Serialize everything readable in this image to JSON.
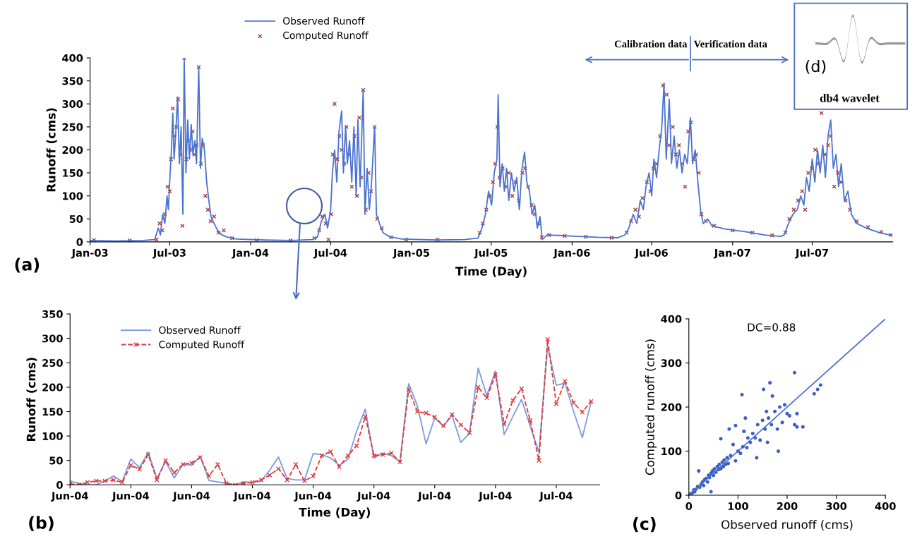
{
  "chart_data": [
    {
      "type": "line",
      "xlabel": "Time (Day)",
      "ylabel": "Runoff (cms)",
      "xlim": [
        "2003-01-01",
        "2007-12-31"
      ],
      "ylim": [
        0,
        400
      ],
      "yticks": [
        0,
        50,
        100,
        150,
        200,
        250,
        300,
        350,
        400
      ],
      "xticks": [
        {
          "value": "2003-01-01",
          "label": "Jan-03"
        },
        {
          "value": "2003-07-01",
          "label": "Jul-03"
        },
        {
          "value": "2004-01-01",
          "label": "Jan-04"
        },
        {
          "value": "2004-07-01",
          "label": "Jul-04"
        },
        {
          "value": "2005-01-01",
          "label": "Jan-05"
        },
        {
          "value": "2005-07-01",
          "label": "Jul-05"
        },
        {
          "value": "2006-01-01",
          "label": "Jan-06"
        },
        {
          "value": "2006-07-01",
          "label": "Jul-06"
        },
        {
          "value": "2007-01-01",
          "label": "Jan-07"
        },
        {
          "value": "2007-07-01",
          "label": "Jul-07"
        }
      ],
      "legend": "top",
      "annotations": [
        "(a)",
        "Calibration data",
        "Verification data"
      ],
      "series": [
        {
          "name": "Observed Runoff",
          "type": "line",
          "color": "#4a72d0",
          "x": [
            "2003-01-01",
            "2003-03-01",
            "2003-05-01",
            "2003-05-28",
            "2003-06-05",
            "2003-06-10",
            "2003-06-15",
            "2003-06-20",
            "2003-06-25",
            "2003-06-28",
            "2003-07-02",
            "2003-07-05",
            "2003-07-08",
            "2003-07-11",
            "2003-07-15",
            "2003-07-19",
            "2003-07-23",
            "2003-07-27",
            "2003-07-31",
            "2003-08-03",
            "2003-08-07",
            "2003-08-11",
            "2003-08-15",
            "2003-08-19",
            "2003-08-23",
            "2003-08-27",
            "2003-08-31",
            "2003-09-05",
            "2003-09-09",
            "2003-09-13",
            "2003-09-18",
            "2003-09-23",
            "2003-09-28",
            "2003-10-03",
            "2003-10-10",
            "2003-10-18",
            "2003-10-28",
            "2003-11-10",
            "2003-12-01",
            "2004-02-01",
            "2004-04-01",
            "2004-05-20",
            "2004-06-01",
            "2004-06-10",
            "2004-06-18",
            "2004-06-24",
            "2004-07-01",
            "2004-07-05",
            "2004-07-10",
            "2004-07-15",
            "2004-07-20",
            "2004-07-26",
            "2004-07-30",
            "2004-08-04",
            "2004-08-08",
            "2004-08-13",
            "2004-08-18",
            "2004-08-23",
            "2004-08-28",
            "2004-09-01",
            "2004-09-06",
            "2004-09-13",
            "2004-09-17",
            "2004-09-22",
            "2004-09-27",
            "2004-10-02",
            "2004-10-09",
            "2004-10-13",
            "2004-10-20",
            "2004-10-28",
            "2004-11-10",
            "2004-12-10",
            "2005-03-01",
            "2005-05-01",
            "2005-06-01",
            "2005-06-10",
            "2005-06-18",
            "2005-06-25",
            "2005-07-02",
            "2005-07-08",
            "2005-07-14",
            "2005-07-17",
            "2005-07-21",
            "2005-07-26",
            "2005-07-31",
            "2005-08-05",
            "2005-08-10",
            "2005-08-16",
            "2005-08-22",
            "2005-08-28",
            "2005-09-03",
            "2005-09-09",
            "2005-09-15",
            "2005-09-20",
            "2005-09-26",
            "2005-10-02",
            "2005-10-08",
            "2005-10-14",
            "2005-10-20",
            "2005-10-25",
            "2005-11-05",
            "2005-12-01",
            "2006-01-15",
            "2006-03-01",
            "2006-04-15",
            "2006-05-01",
            "2006-05-10",
            "2006-05-20",
            "2006-05-28",
            "2006-06-05",
            "2006-06-12",
            "2006-06-18",
            "2006-06-25",
            "2006-07-01",
            "2006-07-06",
            "2006-07-12",
            "2006-07-18",
            "2006-07-24",
            "2006-07-29",
            "2006-08-03",
            "2006-08-10",
            "2006-08-15",
            "2006-08-21",
            "2006-08-27",
            "2006-09-02",
            "2006-09-08",
            "2006-09-14",
            "2006-09-20",
            "2006-09-27",
            "2006-10-02",
            "2006-10-08",
            "2006-10-14",
            "2006-10-20",
            "2006-10-26",
            "2006-11-05",
            "2006-11-15",
            "2006-12-15",
            "2007-02-01",
            "2007-03-15",
            "2007-04-20",
            "2007-04-28",
            "2007-05-08",
            "2007-05-18",
            "2007-05-28",
            "2007-06-05",
            "2007-06-12",
            "2007-06-18",
            "2007-06-24",
            "2007-07-01",
            "2007-07-07",
            "2007-07-13",
            "2007-07-19",
            "2007-07-25",
            "2007-07-31",
            "2007-08-06",
            "2007-08-12",
            "2007-08-18",
            "2007-08-24",
            "2007-08-30",
            "2007-09-05",
            "2007-09-12",
            "2007-09-20",
            "2007-09-28",
            "2007-10-10",
            "2007-11-01",
            "2007-12-01",
            "2007-12-25"
          ],
          "values": [
            3,
            2,
            3,
            5,
            30,
            15,
            60,
            40,
            100,
            70,
            150,
            200,
            280,
            180,
            240,
            315,
            170,
            250,
            60,
            400,
            150,
            265,
            180,
            255,
            190,
            220,
            170,
            380,
            160,
            225,
            200,
            130,
            90,
            55,
            40,
            25,
            15,
            10,
            6,
            4,
            3,
            5,
            10,
            45,
            60,
            30,
            70,
            150,
            200,
            130,
            240,
            285,
            150,
            250,
            170,
            220,
            130,
            250,
            100,
            265,
            120,
            330,
            60,
            160,
            70,
            130,
            250,
            60,
            40,
            20,
            12,
            6,
            4,
            5,
            8,
            30,
            60,
            110,
            80,
            150,
            180,
            320,
            120,
            170,
            110,
            160,
            90,
            150,
            110,
            140,
            70,
            160,
            195,
            130,
            110,
            60,
            80,
            30,
            55,
            5,
            15,
            14,
            12,
            10,
            9,
            15,
            30,
            60,
            40,
            90,
            70,
            120,
            150,
            100,
            180,
            140,
            200,
            250,
            345,
            180,
            310,
            170,
            230,
            160,
            200,
            150,
            190,
            170,
            270,
            170,
            200,
            130,
            70,
            40,
            50,
            35,
            28,
            22,
            15,
            12,
            15,
            40,
            60,
            70,
            100,
            80,
            140,
            110,
            180,
            130,
            200,
            150,
            210,
            140,
            230,
            265,
            160,
            190,
            120,
            170,
            90,
            110,
            60,
            40,
            30,
            20,
            15
          ]
        },
        {
          "name": "Computed Runoff",
          "type": "scatter",
          "marker": "cross",
          "color": "#a33a3a",
          "x": [
            "2003-01-10",
            "2003-04-01",
            "2003-06-01",
            "2003-06-08",
            "2003-06-14",
            "2003-06-20",
            "2003-06-26",
            "2003-07-01",
            "2003-07-04",
            "2003-07-08",
            "2003-07-12",
            "2003-07-16",
            "2003-07-20",
            "2003-07-25",
            "2003-07-30",
            "2003-08-03",
            "2003-08-08",
            "2003-08-12",
            "2003-08-17",
            "2003-08-22",
            "2003-08-26",
            "2003-08-31",
            "2003-09-05",
            "2003-09-10",
            "2003-09-15",
            "2003-09-20",
            "2003-09-26",
            "2003-10-02",
            "2003-10-10",
            "2003-10-20",
            "2003-11-01",
            "2003-11-20",
            "2004-01-15",
            "2004-04-01",
            "2004-05-25",
            "2004-06-05",
            "2004-06-12",
            "2004-06-20",
            "2004-06-26",
            "2004-07-02",
            "2004-07-06",
            "2004-07-10",
            "2004-07-16",
            "2004-07-21",
            "2004-07-26",
            "2004-08-01",
            "2004-08-06",
            "2004-08-12",
            "2004-08-18",
            "2004-08-24",
            "2004-08-30",
            "2004-09-04",
            "2004-09-09",
            "2004-09-13",
            "2004-09-19",
            "2004-09-25",
            "2004-10-01",
            "2004-10-09",
            "2004-10-15",
            "2004-10-25",
            "2004-11-15",
            "2004-12-20",
            "2005-03-01",
            "2005-06-05",
            "2005-06-12",
            "2005-06-20",
            "2005-06-28",
            "2005-07-05",
            "2005-07-10",
            "2005-07-15",
            "2005-07-20",
            "2005-07-27",
            "2005-08-03",
            "2005-08-10",
            "2005-08-18",
            "2005-08-25",
            "2005-09-02",
            "2005-09-10",
            "2005-09-16",
            "2005-09-23",
            "2005-10-01",
            "2005-10-08",
            "2005-10-16",
            "2005-10-24",
            "2005-11-10",
            "2005-12-15",
            "2006-02-01",
            "2006-04-01",
            "2006-05-05",
            "2006-05-15",
            "2006-05-25",
            "2006-06-02",
            "2006-06-10",
            "2006-06-20",
            "2006-06-28",
            "2006-07-05",
            "2006-07-12",
            "2006-07-20",
            "2006-07-27",
            "2006-08-04",
            "2006-08-10",
            "2006-08-18",
            "2006-08-25",
            "2006-09-01",
            "2006-09-08",
            "2006-09-15",
            "2006-09-22",
            "2006-09-28",
            "2006-10-04",
            "2006-10-10",
            "2006-10-16",
            "2006-10-22",
            "2006-11-01",
            "2006-11-20",
            "2007-01-01",
            "2007-02-15",
            "2007-04-01",
            "2007-05-01",
            "2007-05-10",
            "2007-05-20",
            "2007-05-30",
            "2007-06-08",
            "2007-06-15",
            "2007-06-22",
            "2007-06-30",
            "2007-07-08",
            "2007-07-15",
            "2007-07-22",
            "2007-07-30",
            "2007-08-06",
            "2007-08-12",
            "2007-08-20",
            "2007-08-28",
            "2007-09-05",
            "2007-09-15",
            "2007-09-25",
            "2007-10-10",
            "2007-11-05",
            "2007-12-05",
            "2007-12-27"
          ],
          "values": [
            4,
            3,
            5,
            40,
            25,
            60,
            120,
            110,
            180,
            290,
            230,
            250,
            310,
            190,
            35,
            400,
            180,
            220,
            200,
            240,
            190,
            210,
            380,
            170,
            210,
            100,
            70,
            45,
            55,
            20,
            25,
            8,
            4,
            3,
            8,
            25,
            55,
            40,
            5,
            60,
            190,
            300,
            180,
            230,
            200,
            170,
            250,
            190,
            120,
            230,
            100,
            270,
            140,
            330,
            70,
            150,
            110,
            250,
            50,
            30,
            10,
            5,
            5,
            20,
            40,
            70,
            100,
            130,
            170,
            250,
            140,
            160,
            120,
            150,
            100,
            130,
            90,
            150,
            160,
            120,
            80,
            60,
            40,
            10,
            15,
            13,
            11,
            9,
            20,
            45,
            70,
            55,
            95,
            130,
            110,
            160,
            170,
            230,
            340,
            320,
            210,
            250,
            190,
            210,
            170,
            120,
            240,
            260,
            180,
            190,
            150,
            60,
            45,
            35,
            25,
            20,
            14,
            20,
            50,
            70,
            90,
            110,
            70,
            150,
            160,
            200,
            170,
            280,
            190,
            210,
            230,
            120,
            150,
            130,
            90,
            70,
            45,
            32,
            22,
            15
          ]
        }
      ]
    },
    {
      "type": "line",
      "xlabel": "Time (Day)",
      "ylabel": "Runoff (cms)",
      "ylim": [
        0,
        350
      ],
      "yticks": [
        0,
        50,
        100,
        150,
        200,
        250,
        300,
        350
      ],
      "legend": "top left",
      "annotations": [
        "(b)"
      ],
      "categories": [
        "Jun-04",
        null,
        null,
        null,
        null,
        null,
        null,
        "Jun-04",
        null,
        null,
        null,
        null,
        null,
        null,
        "Jun-04",
        null,
        null,
        null,
        null,
        null,
        null,
        "Jun-04",
        null,
        null,
        null,
        null,
        null,
        null,
        "Jun-04",
        null,
        null,
        null,
        null,
        null,
        null,
        "Jul-04",
        null,
        null,
        null,
        null,
        null,
        null,
        "Jul-04",
        null,
        null,
        null,
        null,
        null,
        null,
        "Jul-04",
        null,
        null,
        null,
        null,
        null,
        null,
        "Jul-04",
        null,
        null,
        null,
        null
      ],
      "series": [
        {
          "name": "Observed Runoff",
          "color": "#7a9be0",
          "line_style": "solid",
          "values": [
            8,
            3,
            0,
            0,
            8,
            18,
            7,
            53,
            35,
            67,
            13,
            48,
            14,
            42,
            40,
            58,
            9,
            6,
            3,
            0,
            6,
            5,
            8,
            30,
            57,
            13,
            10,
            10,
            64,
            62,
            55,
            40,
            52,
            110,
            155,
            55,
            65,
            60,
            47,
            207,
            162,
            84,
            137,
            120,
            142,
            87,
            105,
            239,
            183,
            233,
            103,
            140,
            175,
            120,
            67,
            284,
            204,
            208,
            150,
            97,
            169
          ]
        },
        {
          "name": "Computed Runoff",
          "color": "#e03a3a",
          "line_style": "dashed",
          "marker": "cross",
          "values": [
            2,
            0,
            5,
            8,
            8,
            10,
            5,
            40,
            32,
            62,
            10,
            50,
            25,
            42,
            45,
            56,
            18,
            42,
            3,
            0,
            3,
            5,
            10,
            20,
            33,
            10,
            42,
            8,
            18,
            60,
            68,
            37,
            60,
            80,
            140,
            60,
            62,
            65,
            47,
            195,
            150,
            147,
            139,
            121,
            144,
            123,
            107,
            200,
            178,
            226,
            124,
            173,
            197,
            132,
            50,
            298,
            166,
            212,
            168,
            149,
            171
          ]
        }
      ]
    },
    {
      "type": "scatter",
      "xlabel": "Observed runoff (cms)",
      "ylabel": "Computed runoff (cms)",
      "xlim": [
        0,
        400
      ],
      "ylim": [
        0,
        400
      ],
      "xticks": [
        0,
        100,
        200,
        300,
        400
      ],
      "yticks": [
        0,
        100,
        200,
        300,
        400
      ],
      "annotations": [
        "(c)",
        "DC=0.88"
      ],
      "series": [
        {
          "type": "scatter",
          "marker": "circle",
          "color": "#3b5fc0",
          "x": [
            2,
            5,
            8,
            10,
            12,
            15,
            18,
            20,
            22,
            25,
            28,
            30,
            32,
            35,
            38,
            40,
            42,
            45,
            45,
            48,
            50,
            52,
            55,
            58,
            60,
            62,
            65,
            65,
            68,
            70,
            72,
            75,
            78,
            80,
            82,
            85,
            90,
            95,
            95,
            100,
            105,
            108,
            110,
            112,
            115,
            118,
            120,
            125,
            130,
            135,
            138,
            140,
            145,
            150,
            152,
            155,
            158,
            160,
            162,
            165,
            168,
            170,
            175,
            180,
            182,
            185,
            190,
            195,
            200,
            205,
            215,
            215,
            220,
            220,
            232,
            255,
            262,
            268
          ],
          "values": [
            2,
            4,
            6,
            12,
            8,
            14,
            20,
            55,
            18,
            25,
            30,
            22,
            35,
            38,
            30,
            45,
            40,
            8,
            50,
            55,
            45,
            60,
            52,
            65,
            58,
            70,
            60,
            128,
            75,
            65,
            80,
            70,
            85,
            72,
            150,
            90,
            115,
            78,
            158,
            100,
            95,
            228,
            110,
            145,
            175,
            108,
            130,
            120,
            140,
            130,
            85,
            160,
            125,
            170,
            240,
            150,
            190,
            120,
            175,
            255,
            160,
            225,
            190,
            150,
            100,
            200,
            165,
            205,
            185,
            180,
            160,
            278,
            185,
            155,
            155,
            230,
            240,
            250
          ]
        },
        {
          "type": "line",
          "color": "#4a72d0",
          "x": [
            0,
            400
          ],
          "values": [
            0,
            400
          ]
        }
      ]
    },
    {
      "type": "other",
      "title": "db4 wavelet",
      "annotations": [
        "(d)"
      ]
    }
  ]
}
